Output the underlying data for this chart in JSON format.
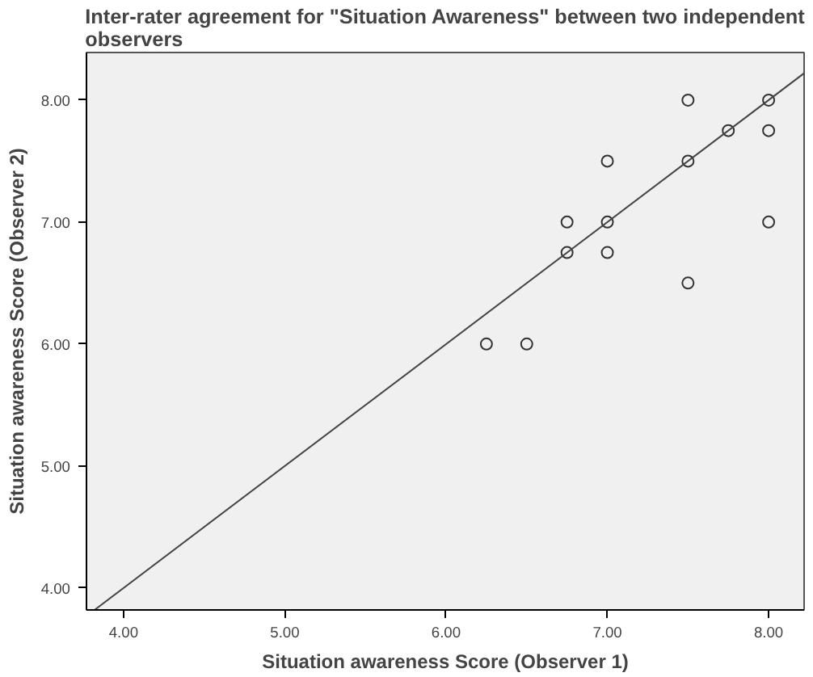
{
  "chart_data": {
    "type": "scatter",
    "title": "Inter-rater agreement for \"Situation Awareness\" between two independent observers",
    "xlabel": "Situation awareness Score (Observer 1)",
    "ylabel": "Situation awareness Score (Observer 2)",
    "grid": false,
    "xlim": [
      3.77,
      8.22
    ],
    "ylim": [
      3.82,
      8.39
    ],
    "xticks": [
      {
        "value": 4,
        "label": "4.00"
      },
      {
        "value": 5,
        "label": "5.00"
      },
      {
        "value": 6,
        "label": "6.00"
      },
      {
        "value": 7,
        "label": "7.00"
      },
      {
        "value": 8,
        "label": "8.00"
      }
    ],
    "yticks": [
      {
        "value": 4,
        "label": "4.00"
      },
      {
        "value": 5,
        "label": "5.00"
      },
      {
        "value": 6,
        "label": "6.00"
      },
      {
        "value": 7,
        "label": "7.00"
      },
      {
        "value": 8,
        "label": "8.00"
      }
    ],
    "series": [
      {
        "marker": "circle",
        "color": "#333333",
        "x": [
          7.5,
          8,
          7.75,
          8,
          7,
          7.5,
          6.75,
          7,
          8,
          6.75,
          7,
          7.5,
          6.25,
          6.5
        ],
        "values": [
          8,
          8,
          7.75,
          7.75,
          7.5,
          7.5,
          7,
          7,
          7,
          6.75,
          6.75,
          6.5,
          6,
          6
        ]
      },
      {
        "type": "line",
        "color": "#444444",
        "marker": "none",
        "x": [
          3.82,
          8.22
        ],
        "values": [
          3.82,
          8.22
        ]
      }
    ]
  }
}
